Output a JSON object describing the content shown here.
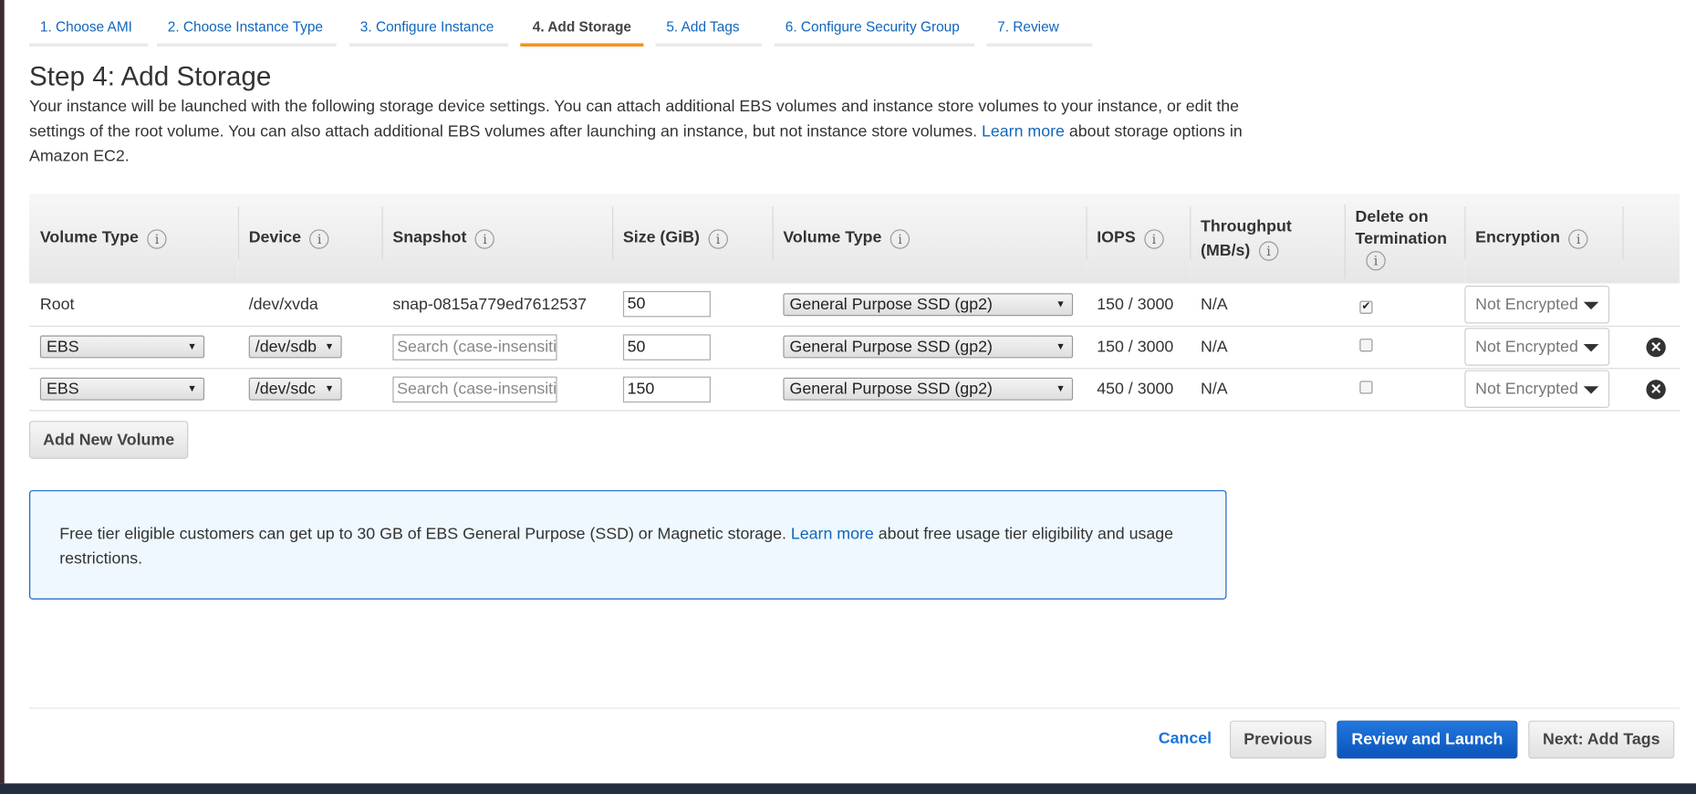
{
  "wizard_tabs": [
    {
      "label": "1. Choose AMI",
      "active": false
    },
    {
      "label": "2. Choose Instance Type",
      "active": false
    },
    {
      "label": "3. Configure Instance",
      "active": false
    },
    {
      "label": "4. Add Storage",
      "active": true
    },
    {
      "label": "5. Add Tags",
      "active": false
    },
    {
      "label": "6. Configure Security Group",
      "active": false
    },
    {
      "label": "7. Review",
      "active": false
    }
  ],
  "page": {
    "title": "Step 4: Add Storage",
    "description_before": "Your instance will be launched with the following storage device settings. You can attach additional EBS volumes and instance store volumes to your instance, or edit the settings of the root volume. You can also attach additional EBS volumes after launching an instance, but not instance store volumes.",
    "description_link": "Learn more",
    "description_after": "about storage options in Amazon EC2."
  },
  "table": {
    "headers": [
      "Volume Type",
      "Device",
      "Snapshot",
      "Size (GiB)",
      "Volume Type",
      "IOPS",
      "Throughput (MB/s)",
      "Delete on Termination",
      "Encryption"
    ],
    "rows": [
      {
        "volume_type": "Root",
        "device": "/dev/xvda",
        "snapshot": "snap-0815a779ed7612537",
        "size": "50",
        "ebs_type": "General Purpose SSD (gp2)",
        "iops": "150 / 3000",
        "throughput": "N/A",
        "delete_on_termination": true,
        "encryption": "Not Encrypted"
      },
      {
        "volume_type": "EBS",
        "device": "/dev/sdb",
        "snapshot_placeholder": "Search (case-insensitive)",
        "size": "50",
        "ebs_type": "General Purpose SSD (gp2)",
        "iops": "150 / 3000",
        "throughput": "N/A",
        "delete_on_termination": false,
        "encryption": "Not Encrypted"
      },
      {
        "volume_type": "EBS",
        "device": "/dev/sdc",
        "snapshot_placeholder": "Search (case-insensitive)",
        "size": "150",
        "ebs_type": "General Purpose SSD (gp2)",
        "iops": "450 / 3000",
        "throughput": "N/A",
        "delete_on_termination": false,
        "encryption": "Not Encrypted"
      }
    ]
  },
  "add_volume_label": "Add New Volume",
  "free_tier": {
    "text_before": "Free tier eligible customers can get up to 30 GB of EBS General Purpose (SSD) or Magnetic storage.",
    "link": "Learn more",
    "text_after": "about free usage tier eligibility and usage restrictions."
  },
  "footer": {
    "cancel": "Cancel",
    "previous": "Previous",
    "review_launch": "Review and Launch",
    "next": "Next: Add Tags"
  },
  "colors": {
    "active_tab": "#f7921e",
    "link": "#1166bb",
    "primary_button": "#0a55bb",
    "info_box_bg": "#eef8fe"
  }
}
